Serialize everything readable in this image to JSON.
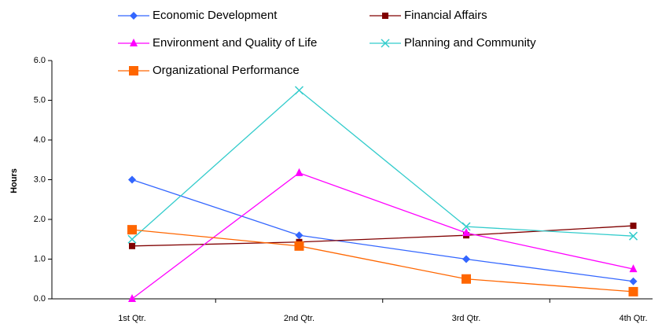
{
  "chart_data": {
    "type": "line",
    "categories": [
      "1st Qtr.",
      "2nd Qtr.",
      "3rd Qtr.",
      "4th Qtr."
    ],
    "y_label": "Hours",
    "ylim": [
      0,
      6
    ],
    "yticks": [
      {
        "value": 0,
        "label": "0.0"
      },
      {
        "value": 1,
        "label": "1.0"
      },
      {
        "value": 2,
        "label": "2.0"
      },
      {
        "value": 3,
        "label": "3.0"
      },
      {
        "value": 4,
        "label": "4.0"
      },
      {
        "value": 5,
        "label": "5.0"
      },
      {
        "value": 6,
        "label": "6.0"
      }
    ],
    "grid": false,
    "legend": "top",
    "series": [
      {
        "name": "Economic Development",
        "color": "#3366ff",
        "marker": "diamond",
        "values": [
          3.0,
          1.6,
          1.0,
          0.44
        ]
      },
      {
        "name": "Financial Affairs",
        "color": "#800000",
        "marker": "square",
        "values": [
          1.33,
          1.43,
          1.6,
          1.84
        ]
      },
      {
        "name": "Environment and Quality of Life",
        "color": "#ff00ff",
        "marker": "triangle",
        "values": [
          0,
          3.17,
          1.66,
          0.75
        ]
      },
      {
        "name": "Planning and Community",
        "color": "#33cccc",
        "marker": "x",
        "values": [
          1.5,
          5.25,
          1.82,
          1.58
        ]
      },
      {
        "name": "Organizational Performance",
        "color": "#ff6600",
        "marker": "bigsquare",
        "values": [
          1.74,
          1.33,
          0.5,
          0.18
        ]
      }
    ]
  }
}
